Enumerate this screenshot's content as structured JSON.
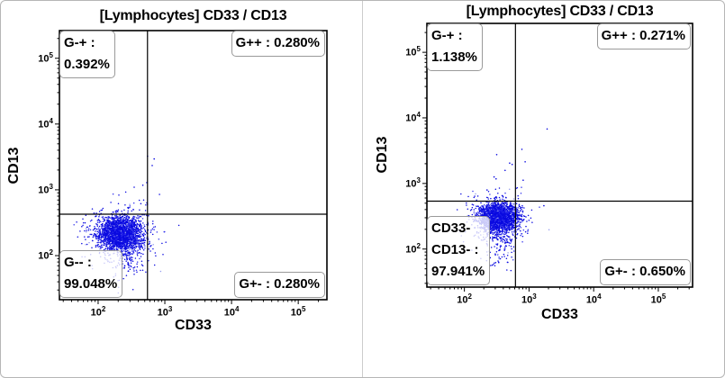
{
  "frame": {
    "background": "#ffffff",
    "border_color": "#b6b6b6",
    "divider_color": "#cccccc"
  },
  "chart_data": [
    {
      "type": "scatter",
      "panel": "left",
      "title": "[Lymphocytes] CD33 / CD13",
      "xlabel": "CD33",
      "ylabel": "CD13",
      "xscale": "log",
      "yscale": "log",
      "xlim_log10": [
        1.42,
        5.43
      ],
      "ylim_log10": [
        1.33,
        5.42
      ],
      "tick_labels": [
        "10^2",
        "10^3",
        "10^4",
        "10^5"
      ],
      "tick_decades": [
        2,
        3,
        4,
        5
      ],
      "grid": false,
      "quadrant_gate_log10": {
        "x": 2.74,
        "y": 2.63
      },
      "stats": {
        "top_left": {
          "lines": [
            "G-+ :",
            "0.392%"
          ],
          "percent": 0.392
        },
        "top_right": {
          "lines": [
            "G++ : 0.280%"
          ],
          "percent": 0.28
        },
        "bottom_left": {
          "lines": [
            "G-- :",
            "99.048%"
          ],
          "percent": 99.048
        },
        "bottom_right": {
          "lines": [
            "G+- : 0.280%"
          ],
          "percent": 0.28
        }
      },
      "dot_colors": [
        "#0a0ae0",
        "#3434ee",
        "#959cef"
      ],
      "clusters": [
        {
          "name": "halo",
          "log_center": [
            2.31,
            2.31
          ],
          "log_sigma": [
            0.27,
            0.21
          ],
          "count": 430
        },
        {
          "name": "lower-tail",
          "log_center": [
            2.4,
            2.0
          ],
          "log_sigma": [
            0.13,
            0.22
          ],
          "count": 130
        },
        {
          "name": "main-core",
          "log_center": [
            2.34,
            2.34
          ],
          "log_sigma": [
            0.16,
            0.12
          ],
          "count": 2300
        }
      ],
      "outlier_points_log10": [
        [
          2.74,
          3.51
        ],
        [
          2.84,
          3.47
        ],
        [
          2.81,
          3.37
        ],
        [
          2.73,
          3.11
        ],
        [
          2.67,
          3.07
        ],
        [
          2.92,
          2.93
        ],
        [
          2.54,
          3.04
        ],
        [
          2.64,
          2.79
        ]
      ]
    },
    {
      "type": "scatter",
      "panel": "right",
      "title": "[Lymphocytes] CD33 / CD13",
      "xlabel": "CD33",
      "ylabel": "CD13",
      "xscale": "log",
      "yscale": "log",
      "xlim_log10": [
        1.42,
        5.53
      ],
      "ylim_log10": [
        1.42,
        5.44
      ],
      "tick_labels": [
        "10^2",
        "10^3",
        "10^4",
        "10^5"
      ],
      "tick_decades": [
        2,
        3,
        4,
        5
      ],
      "grid": false,
      "quadrant_gate_log10": {
        "x": 2.79,
        "y": 2.73
      },
      "stats": {
        "top_left": {
          "lines": [
            "G-+ :",
            "1.138%"
          ],
          "percent": 1.138
        },
        "top_right": {
          "lines": [
            "G++ : 0.271%"
          ],
          "percent": 0.271
        },
        "bottom_left": {
          "lines": [
            "CD33-",
            "CD13- :",
            "97.941%"
          ],
          "percent": 97.941
        },
        "bottom_right": {
          "lines": [
            "G+- : 0.650%"
          ],
          "percent": 0.65
        }
      },
      "dot_colors": [
        "#0a0ae0",
        "#3434ee",
        "#959cef"
      ],
      "clusters": [
        {
          "name": "halo",
          "log_center": [
            2.5,
            2.46
          ],
          "log_sigma": [
            0.24,
            0.18
          ],
          "count": 460
        },
        {
          "name": "lower-tail",
          "log_center": [
            2.55,
            2.12
          ],
          "log_sigma": [
            0.12,
            0.2
          ],
          "count": 140
        },
        {
          "name": "main-core",
          "log_center": [
            2.53,
            2.49
          ],
          "log_sigma": [
            0.14,
            0.1
          ],
          "count": 2300
        }
      ],
      "outlier_points_log10": [
        [
          3.28,
          3.83
        ],
        [
          2.5,
          3.44
        ],
        [
          2.7,
          3.31
        ],
        [
          2.74,
          3.29
        ],
        [
          2.89,
          3.52
        ],
        [
          2.94,
          3.33
        ],
        [
          2.63,
          3.2
        ],
        [
          2.49,
          3.07
        ],
        [
          2.91,
          3.05
        ],
        [
          2.5,
          2.78
        ],
        [
          2.35,
          2.9
        ],
        [
          3.23,
          2.66
        ],
        [
          2.46,
          3.1
        ]
      ]
    }
  ]
}
